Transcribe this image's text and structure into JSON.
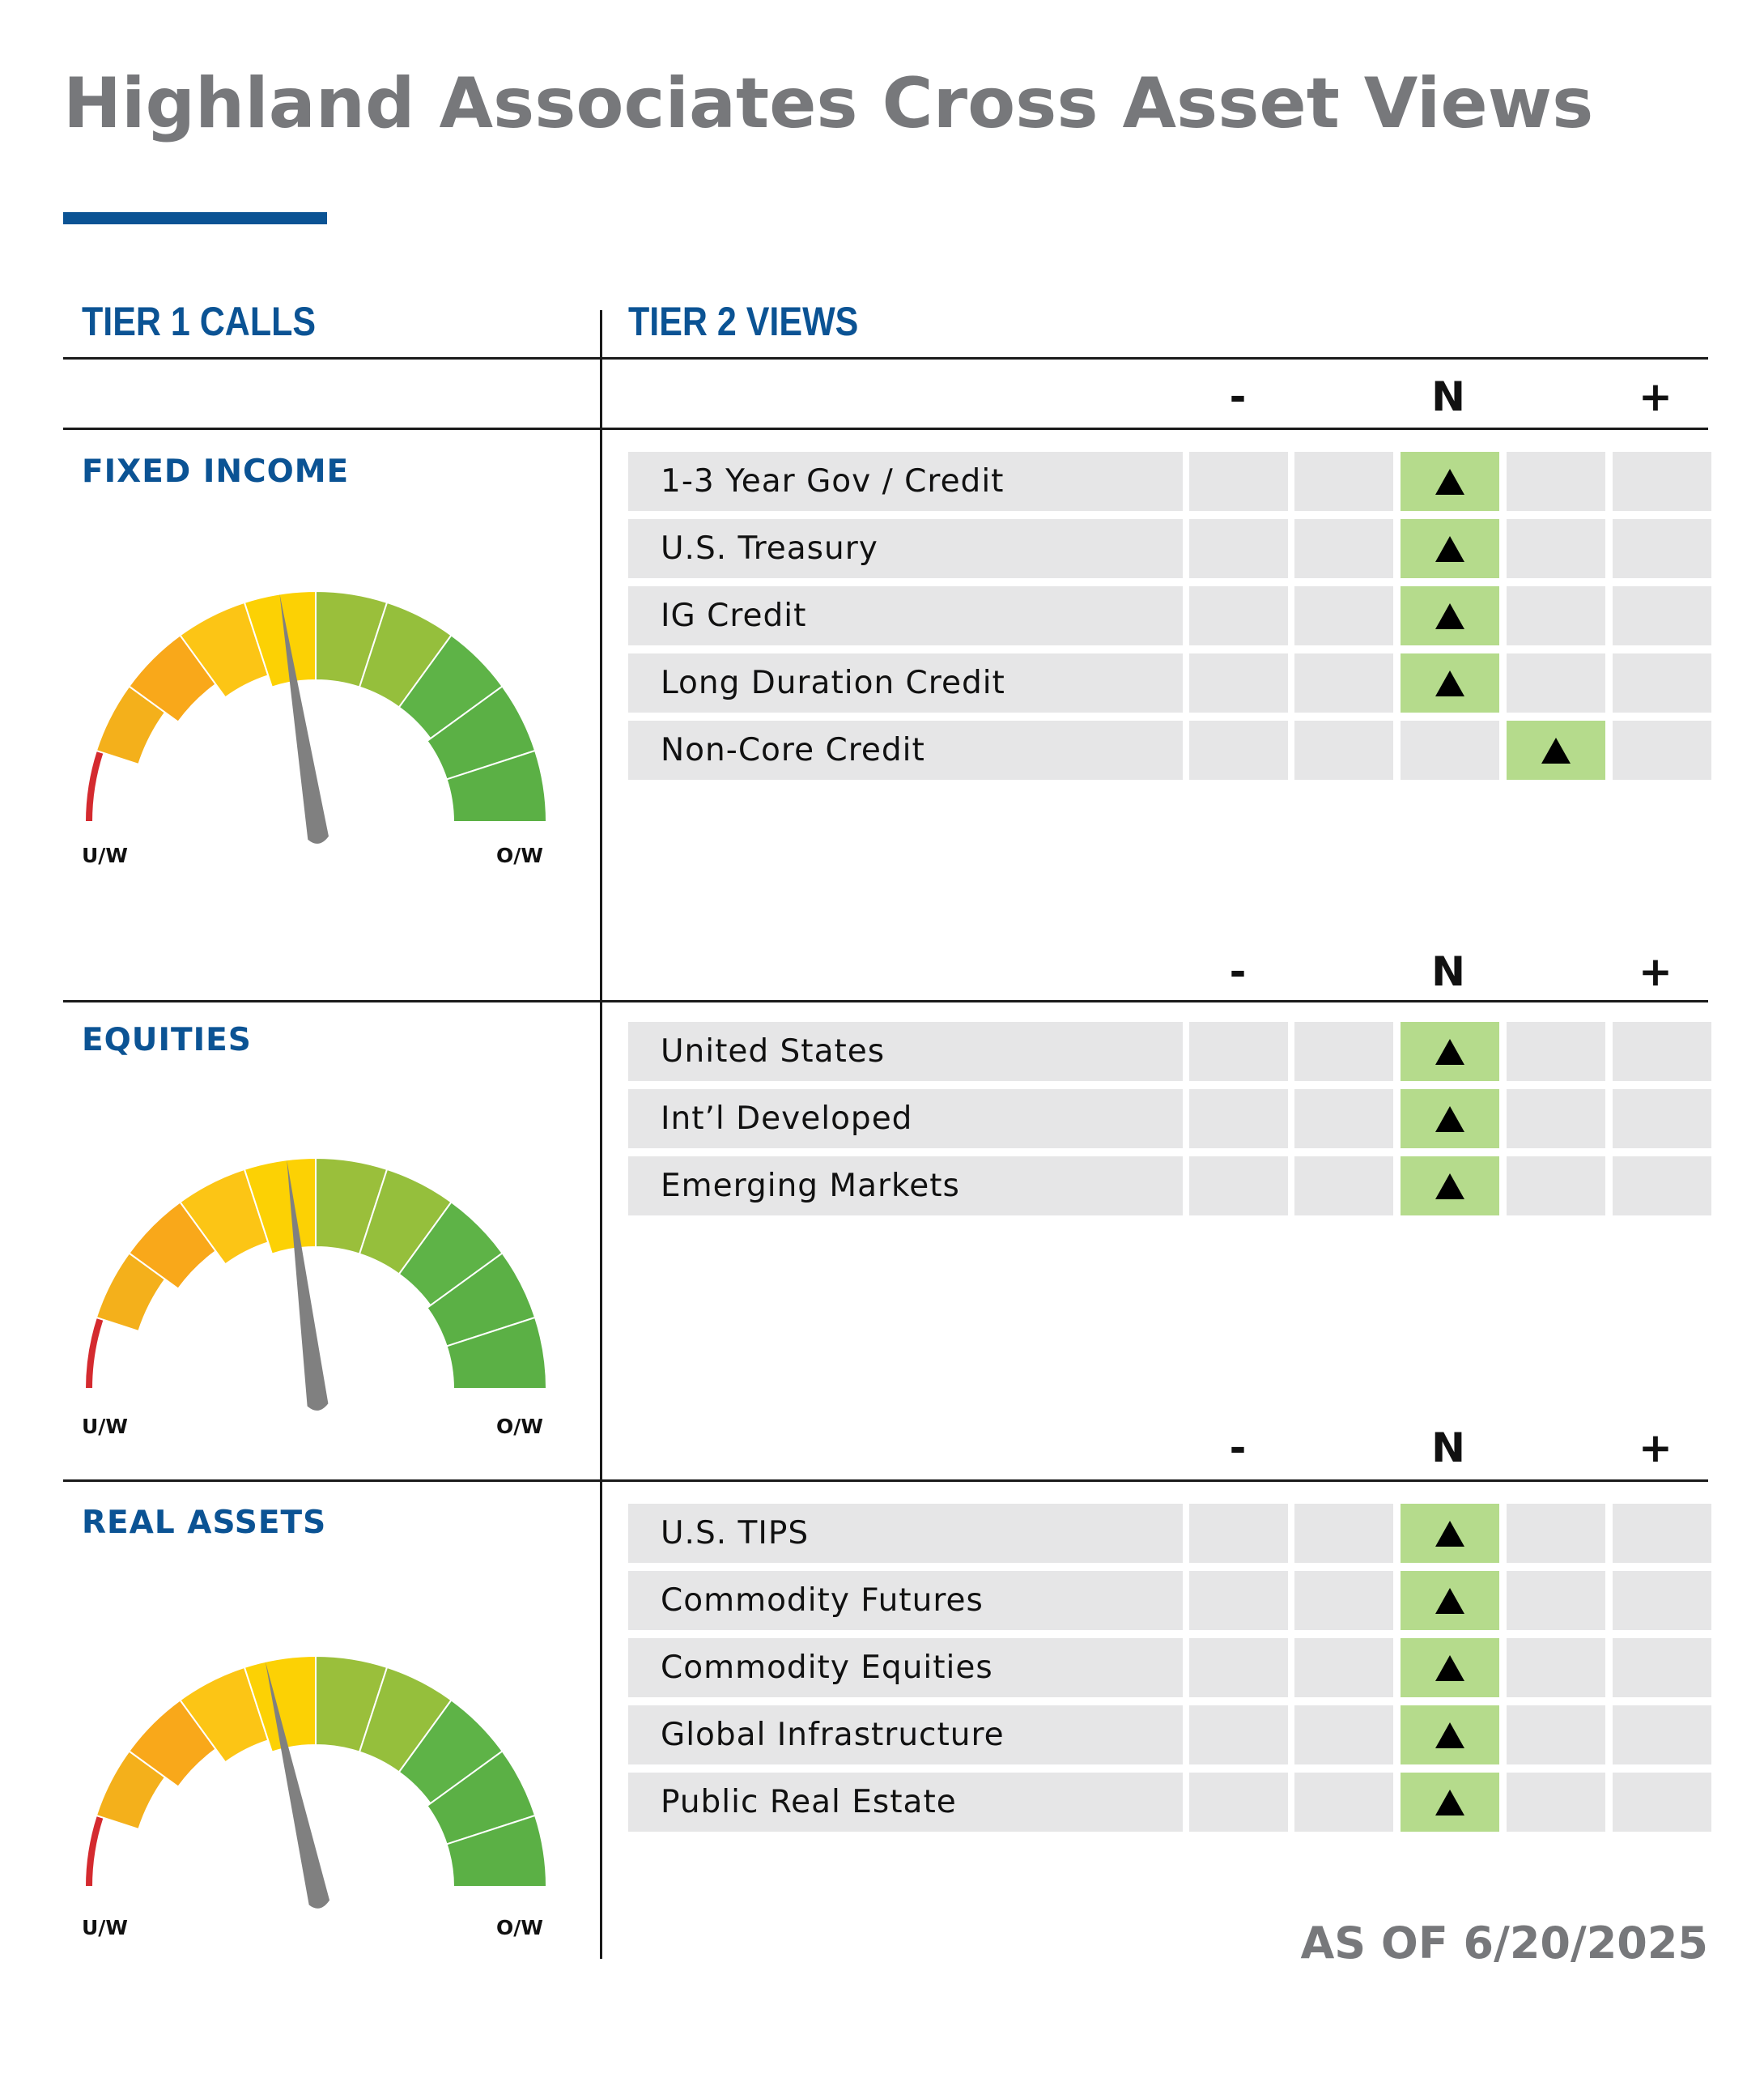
{
  "title": "Highland Associates Cross Asset Views",
  "tier1_header": "TIER 1 CALLS",
  "tier2_header": "TIER 2 VIEWS",
  "scale": {
    "minus": "-",
    "neutral": "N",
    "plus": "+"
  },
  "gauge_labels": {
    "underweight": "U/W",
    "overweight": "O/W"
  },
  "colors": {
    "brand_blue": "#0b5394",
    "title_gray": "#77787b",
    "cell_gray": "#e6e6e7",
    "active_green": "#b5db8c",
    "gauge": [
      "#d42a2f",
      "#f4b01b",
      "#f9a81a",
      "#fcc515",
      "#fcd104",
      "#9abf3b",
      "#95bf3c",
      "#5eb347",
      "#5bb045",
      "#5bb045"
    ],
    "needle": "#808080"
  },
  "sections": [
    {
      "name": "FIXED INCOME",
      "gauge_position": 0.45,
      "rows": [
        {
          "label": "1-3 Year Gov / Credit",
          "active": 3
        },
        {
          "label": "U.S. Treasury",
          "active": 3
        },
        {
          "label": "IG Credit",
          "active": 3
        },
        {
          "label": "Long Duration Credit",
          "active": 3
        },
        {
          "label": "Non-Core Credit",
          "active": 4
        }
      ]
    },
    {
      "name": "EQUITIES",
      "gauge_position": 0.46,
      "rows": [
        {
          "label": "United States",
          "active": 3
        },
        {
          "label": "Int’l Developed",
          "active": 3
        },
        {
          "label": "Emerging Markets",
          "active": 3
        }
      ]
    },
    {
      "name": "REAL ASSETS",
      "gauge_position": 0.43,
      "rows": [
        {
          "label": "U.S. TIPS",
          "active": 3
        },
        {
          "label": "Commodity Futures",
          "active": 3
        },
        {
          "label": "Commodity Equities",
          "active": 3
        },
        {
          "label": "Global Infrastructure",
          "active": 3
        },
        {
          "label": "Public Real Estate",
          "active": 3
        }
      ]
    }
  ],
  "as_of": "AS OF 6/20/2025"
}
